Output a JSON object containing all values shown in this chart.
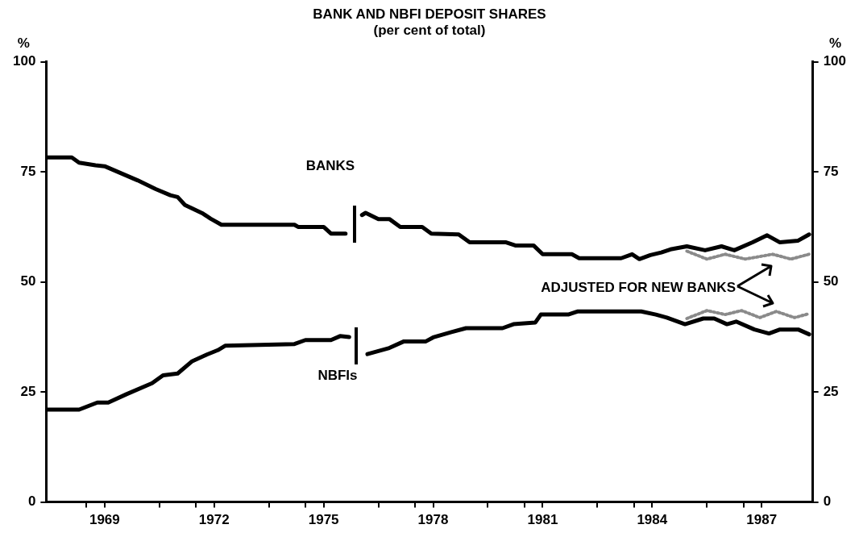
{
  "chart_data": {
    "type": "line",
    "title": "BANK AND NBFI DEPOSIT SHARES",
    "subtitle": "(per cent of total)",
    "ylabel": "%",
    "y2label": "%",
    "xlim": [
      1967.4,
      1988.4
    ],
    "xticks": [
      {
        "value": 1968.5,
        "label": null
      },
      1969,
      {
        "value": 1970.5,
        "label": null
      },
      {
        "value": 1971.5,
        "label": null
      },
      1972,
      {
        "value": 1973.5,
        "label": null
      },
      {
        "value": 1974.5,
        "label": null
      },
      1975,
      {
        "value": 1976.5,
        "label": null
      },
      {
        "value": 1977.5,
        "label": null
      },
      1978,
      {
        "value": 1979.5,
        "label": null
      },
      {
        "value": 1980.5,
        "label": null
      },
      1981,
      {
        "value": 1982.5,
        "label": null
      },
      {
        "value": 1983.5,
        "label": null
      },
      1984,
      {
        "value": 1985.5,
        "label": null
      },
      {
        "value": 1986.5,
        "label": null
      },
      1987
    ],
    "ylim": [
      0,
      100
    ],
    "yticks": [
      0,
      25,
      50,
      75,
      100
    ],
    "y2lim": [
      0,
      100
    ],
    "y2ticks": [
      0,
      25,
      50,
      75,
      100
    ],
    "grid": false,
    "legend": false,
    "marker": "none",
    "annotations": [
      "ADJUSTED FOR NEW BANKS"
    ],
    "series": [
      {
        "name": "BANKS",
        "color": "#000000",
        "x": [
          1967.4,
          1968.1,
          1968.3,
          1968.75,
          1969.0,
          1969.9,
          1970.4,
          1970.8,
          1971.0,
          1971.2,
          1971.7,
          1971.9,
          1972.2,
          1974.2,
          1974.3,
          1975.0,
          1975.2,
          1975.6,
          1975.85,
          1976.05,
          1976.15,
          1976.5,
          1976.8,
          1977.1,
          1977.7,
          1977.95,
          1978.7,
          1979.0,
          1980.0,
          1980.25,
          1980.75,
          1981.0,
          1981.8,
          1982.0,
          1983.15,
          1983.45,
          1983.65,
          1983.95,
          1984.25,
          1984.5,
          1984.95,
          1985.45,
          1985.9,
          1986.25,
          1986.75,
          1987.15,
          1987.5,
          1988.0,
          1988.3
        ],
        "values": [
          78.3,
          78.3,
          77.1,
          76.5,
          76.3,
          73.1,
          71.1,
          69.7,
          69.3,
          67.5,
          65.5,
          64.4,
          63.0,
          63.0,
          62.5,
          62.5,
          61.0,
          61.0,
          null,
          65.2,
          65.7,
          64.3,
          64.3,
          62.5,
          62.5,
          61.0,
          60.8,
          59.0,
          59.0,
          58.3,
          58.3,
          56.3,
          56.3,
          55.4,
          55.4,
          56.3,
          55.2,
          56.1,
          56.7,
          57.4,
          58.1,
          57.2,
          58.1,
          57.2,
          59.0,
          60.6,
          59.0,
          59.4,
          60.8
        ]
      },
      {
        "name": "NBFIs",
        "color": "#000000",
        "x": [
          1967.4,
          1968.3,
          1968.8,
          1969.1,
          1969.6,
          1970.3,
          1970.6,
          1971.0,
          1971.4,
          1971.8,
          1972.1,
          1972.3,
          1974.2,
          1974.5,
          1975.2,
          1975.45,
          1975.7,
          1975.9,
          1976.2,
          1976.8,
          1977.2,
          1977.8,
          1978.0,
          1978.5,
          1978.9,
          1979.9,
          1980.2,
          1980.8,
          1980.95,
          1981.7,
          1981.95,
          1983.7,
          1984.1,
          1984.4,
          1984.9,
          1985.4,
          1985.7,
          1986.05,
          1986.3,
          1986.8,
          1987.2,
          1987.5,
          1988.0,
          1988.3
        ],
        "values": [
          21,
          21,
          22.6,
          22.6,
          24.5,
          27,
          28.8,
          29.2,
          32,
          33.5,
          34.5,
          35.5,
          35.9,
          36.8,
          36.8,
          37.7,
          37.5,
          null,
          33.6,
          35.0,
          36.5,
          36.5,
          37.4,
          38.6,
          39.5,
          39.5,
          40.4,
          40.8,
          42.6,
          42.6,
          43.3,
          43.3,
          42.6,
          41.9,
          40.4,
          41.7,
          41.7,
          40.4,
          41.0,
          39.2,
          38.3,
          39.2,
          39.2,
          38.1
        ]
      },
      {
        "color": "#8a8a8a",
        "line_style": "dotted",
        "x": [
          1984.95,
          1985.5,
          1986.0,
          1986.55,
          1987.3,
          1987.8,
          1988.3
        ],
        "values": [
          57.0,
          55.2,
          56.3,
          55.2,
          56.3,
          55.2,
          56.3
        ]
      },
      {
        "color": "#8a8a8a",
        "line_style": "dotted",
        "x": [
          1984.95,
          1985.5,
          1986.0,
          1986.45,
          1986.95,
          1987.4,
          1987.9,
          1988.3
        ],
        "values": [
          41.7,
          43.5,
          42.6,
          43.5,
          41.9,
          43.3,
          41.9,
          42.8
        ]
      }
    ]
  }
}
